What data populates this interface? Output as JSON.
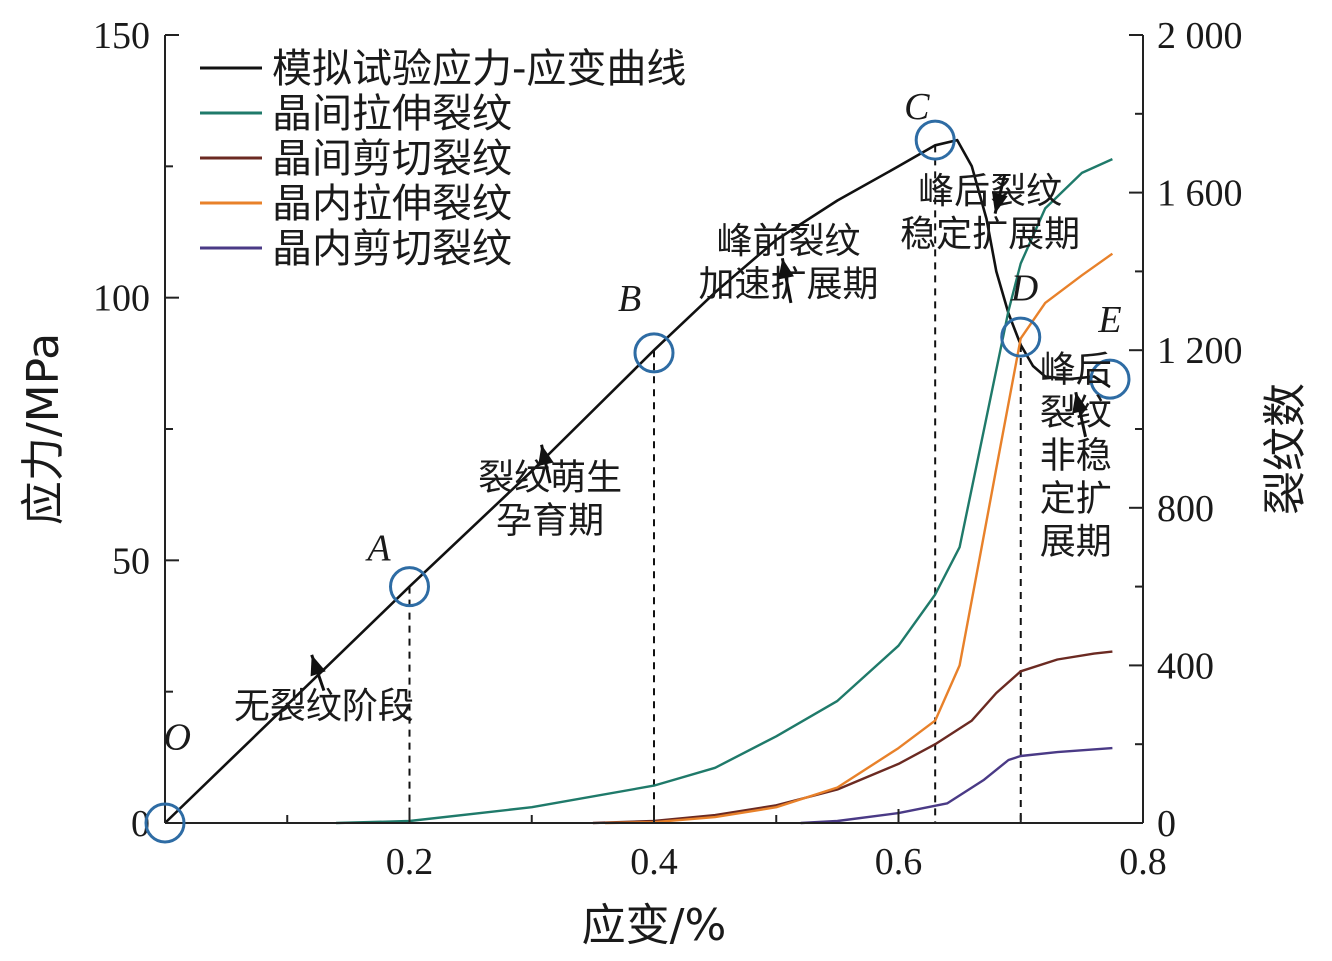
{
  "chart_data": {
    "type": "line",
    "xlabel": "应变/%",
    "ylabel": "应力/MPa",
    "y2label": "裂纹数",
    "xlim": [
      0,
      0.8
    ],
    "ylim": [
      0,
      150
    ],
    "y2lim": [
      0,
      2000
    ],
    "x_ticks": [
      "0.2",
      "0.4",
      "0.6",
      "0.8"
    ],
    "y_ticks": [
      "0",
      "50",
      "100",
      "150"
    ],
    "y2_ticks": [
      "0",
      "400",
      "800",
      "1 200",
      "1 600",
      "2 000"
    ],
    "legend_position": "top-left",
    "series": [
      {
        "name": "模拟试验应力-应变曲线",
        "axis": "left",
        "color": "#111111",
        "points": [
          [
            0,
            0
          ],
          [
            0.1,
            22.5
          ],
          [
            0.2,
            45
          ],
          [
            0.3,
            67
          ],
          [
            0.4,
            90
          ],
          [
            0.45,
            101
          ],
          [
            0.5,
            111
          ],
          [
            0.55,
            118.5
          ],
          [
            0.6,
            125
          ],
          [
            0.63,
            129
          ],
          [
            0.648,
            130
          ],
          [
            0.66,
            125
          ],
          [
            0.672,
            115
          ],
          [
            0.68,
            105
          ],
          [
            0.69,
            97
          ],
          [
            0.7,
            91
          ],
          [
            0.71,
            87
          ],
          [
            0.72,
            85
          ],
          [
            0.74,
            84.5
          ],
          [
            0.76,
            85
          ],
          [
            0.773,
            83
          ]
        ]
      },
      {
        "name": "晶间拉伸裂纹",
        "axis": "right",
        "color": "#1f7a6a",
        "points": [
          [
            0.14,
            0
          ],
          [
            0.2,
            5
          ],
          [
            0.3,
            40
          ],
          [
            0.4,
            95
          ],
          [
            0.45,
            140
          ],
          [
            0.5,
            220
          ],
          [
            0.55,
            310
          ],
          [
            0.6,
            450
          ],
          [
            0.63,
            580
          ],
          [
            0.65,
            700
          ],
          [
            0.67,
            1000
          ],
          [
            0.69,
            1300
          ],
          [
            0.7,
            1420
          ],
          [
            0.72,
            1560
          ],
          [
            0.75,
            1650
          ],
          [
            0.775,
            1685
          ]
        ]
      },
      {
        "name": "晶间剪切裂纹",
        "axis": "right",
        "color": "#6b2a22",
        "points": [
          [
            0.35,
            0
          ],
          [
            0.4,
            5
          ],
          [
            0.45,
            20
          ],
          [
            0.5,
            45
          ],
          [
            0.55,
            85
          ],
          [
            0.6,
            150
          ],
          [
            0.63,
            200
          ],
          [
            0.66,
            260
          ],
          [
            0.68,
            330
          ],
          [
            0.7,
            385
          ],
          [
            0.73,
            415
          ],
          [
            0.76,
            430
          ],
          [
            0.775,
            435
          ]
        ]
      },
      {
        "name": "晶内拉伸裂纹",
        "axis": "right",
        "color": "#e8812a",
        "points": [
          [
            0.36,
            0
          ],
          [
            0.4,
            2
          ],
          [
            0.45,
            15
          ],
          [
            0.5,
            40
          ],
          [
            0.55,
            90
          ],
          [
            0.6,
            190
          ],
          [
            0.63,
            260
          ],
          [
            0.65,
            400
          ],
          [
            0.665,
            650
          ],
          [
            0.68,
            900
          ],
          [
            0.7,
            1230
          ],
          [
            0.72,
            1320
          ],
          [
            0.75,
            1390
          ],
          [
            0.775,
            1445
          ]
        ]
      },
      {
        "name": "晶内剪切裂纹",
        "axis": "right",
        "color": "#4a3a86",
        "points": [
          [
            0.52,
            0
          ],
          [
            0.55,
            5
          ],
          [
            0.6,
            25
          ],
          [
            0.64,
            50
          ],
          [
            0.67,
            110
          ],
          [
            0.69,
            160
          ],
          [
            0.7,
            170
          ],
          [
            0.73,
            180
          ],
          [
            0.775,
            190
          ]
        ]
      }
    ],
    "markers": [
      {
        "label": "O",
        "x": 0,
        "y": 0
      },
      {
        "label": "A",
        "x": 0.2,
        "y": 45
      },
      {
        "label": "B",
        "x": 0.4,
        "y": 89.5
      },
      {
        "label": "C",
        "x": 0.63,
        "y": 130
      },
      {
        "label": "D",
        "x": 0.7,
        "y": 92.5
      },
      {
        "label": "E",
        "x": 0.773,
        "y": 84.5
      }
    ],
    "stage_lines_x": [
      0.2,
      0.4,
      0.63,
      0.7
    ],
    "annotations": [
      {
        "id": "stage1",
        "lines": [
          "无裂纹阶段"
        ],
        "x": 0.13,
        "y": 20
      },
      {
        "id": "stage2",
        "lines": [
          "裂纹萌生",
          "孕育期"
        ],
        "x": 0.315,
        "y": 63.5
      },
      {
        "id": "stage3",
        "lines": [
          "峰前裂纹",
          "加速扩展期"
        ],
        "x": 0.51,
        "y": 108.5
      },
      {
        "id": "stage4",
        "lines": [
          "峰后裂纹",
          "稳定扩展期"
        ],
        "x": 0.675,
        "y": 118
      },
      {
        "id": "stage5",
        "lines": [
          "峰后",
          "裂纹",
          "非稳",
          "定扩",
          "展期"
        ],
        "x": 0.745,
        "y": 84
      }
    ]
  }
}
